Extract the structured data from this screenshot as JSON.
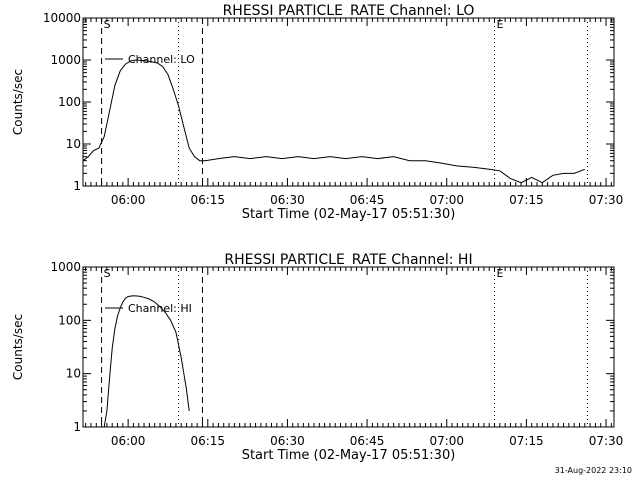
{
  "footer_timestamp": "31-Aug-2022 23:10",
  "chart_data": [
    {
      "type": "line",
      "title": "RHESSI PARTICLE_RATE Channel: LO",
      "xlabel": "Start Time (02-May-17 05:51:30)",
      "ylabel": "Counts/sec",
      "y_scale": "log",
      "ylim": [
        1,
        10000
      ],
      "y_ticks": [
        1,
        10,
        100,
        1000,
        10000
      ],
      "y_tick_labels": [
        "1",
        "10",
        "100",
        "1000",
        "10000"
      ],
      "x_ticks": [
        "06:00",
        "06:15",
        "06:30",
        "06:45",
        "07:00",
        "07:15",
        "07:30"
      ],
      "xlim": [
        "05:51:30",
        "07:31:30"
      ],
      "legend": "top-left",
      "series": [
        {
          "name": "Channel: LO",
          "points": [
            [
              "05:51:30",
              4
            ],
            [
              "05:52:30",
              5
            ],
            [
              "05:53:30",
              7
            ],
            [
              "05:54:30",
              8
            ],
            [
              "05:55:30",
              15
            ],
            [
              "05:56:30",
              60
            ],
            [
              "05:57:30",
              250
            ],
            [
              "05:58:30",
              550
            ],
            [
              "05:59:30",
              800
            ],
            [
              "06:00:30",
              950
            ],
            [
              "06:01:30",
              1000
            ],
            [
              "06:02:30",
              980
            ],
            [
              "06:03:30",
              950
            ],
            [
              "06:04:30",
              900
            ],
            [
              "06:05:30",
              850
            ],
            [
              "06:06:30",
              700
            ],
            [
              "06:07:30",
              450
            ],
            [
              "06:08:30",
              200
            ],
            [
              "06:09:30",
              80
            ],
            [
              "06:10:30",
              25
            ],
            [
              "06:11:30",
              8
            ],
            [
              "06:12:30",
              5
            ],
            [
              "06:13:30",
              4
            ],
            [
              "06:14:30",
              4
            ],
            [
              "06:17:00",
              4.5
            ],
            [
              "06:20:00",
              5
            ],
            [
              "06:23:00",
              4.5
            ],
            [
              "06:26:00",
              5
            ],
            [
              "06:29:00",
              4.5
            ],
            [
              "06:32:00",
              5
            ],
            [
              "06:35:00",
              4.5
            ],
            [
              "06:38:00",
              5
            ],
            [
              "06:41:00",
              4.5
            ],
            [
              "06:44:00",
              5
            ],
            [
              "06:47:00",
              4.5
            ],
            [
              "06:50:00",
              5
            ],
            [
              "06:53:00",
              4
            ],
            [
              "06:56:00",
              4
            ],
            [
              "06:59:00",
              3.5
            ],
            [
              "07:02:00",
              3
            ],
            [
              "07:05:00",
              2.8
            ],
            [
              "07:08:00",
              2.5
            ],
            [
              "07:10:00",
              2.3
            ],
            [
              "07:12:00",
              1.5
            ],
            [
              "07:14:00",
              1.2
            ],
            [
              "07:16:00",
              1.6
            ],
            [
              "07:18:00",
              1.2
            ],
            [
              "07:20:00",
              1.8
            ],
            [
              "07:22:00",
              2
            ],
            [
              "07:24:00",
              2
            ],
            [
              "07:26:00",
              2.5
            ]
          ]
        }
      ],
      "markers": [
        {
          "label": "S",
          "time": "05:55:00",
          "style": "dashed"
        },
        {
          "label": "",
          "time": "06:09:30",
          "style": "dotted"
        },
        {
          "label": "",
          "time": "06:14:00",
          "style": "dashed"
        },
        {
          "label": "E",
          "time": "07:09:00",
          "style": "dotted"
        },
        {
          "label": "",
          "time": "07:26:30",
          "style": "dotted"
        }
      ]
    },
    {
      "type": "line",
      "title": "RHESSI PARTICLE_RATE Channel: HI",
      "xlabel": "Start Time (02-May-17 05:51:30)",
      "ylabel": "Counts/sec",
      "y_scale": "log",
      "ylim": [
        1,
        1000
      ],
      "y_ticks": [
        1,
        10,
        100,
        1000
      ],
      "y_tick_labels": [
        "1",
        "10",
        "100",
        "1000"
      ],
      "x_ticks": [
        "06:00",
        "06:15",
        "06:30",
        "06:45",
        "07:00",
        "07:15",
        "07:30"
      ],
      "xlim": [
        "05:51:30",
        "07:31:30"
      ],
      "legend": "top-left",
      "series": [
        {
          "name": "Channel: HI",
          "points": [
            [
              "05:55:30",
              1
            ],
            [
              "05:56:00",
              2
            ],
            [
              "05:56:30",
              8
            ],
            [
              "05:57:00",
              30
            ],
            [
              "05:57:30",
              70
            ],
            [
              "05:58:00",
              120
            ],
            [
              "05:58:30",
              170
            ],
            [
              "05:59:00",
              220
            ],
            [
              "05:59:30",
              260
            ],
            [
              "06:00:00",
              280
            ],
            [
              "06:01:00",
              290
            ],
            [
              "06:02:00",
              285
            ],
            [
              "06:03:00",
              270
            ],
            [
              "06:04:00",
              250
            ],
            [
              "06:05:00",
              220
            ],
            [
              "06:06:00",
              180
            ],
            [
              "06:07:00",
              140
            ],
            [
              "06:08:00",
              100
            ],
            [
              "06:09:00",
              60
            ],
            [
              "06:10:00",
              20
            ],
            [
              "06:11:00",
              5
            ],
            [
              "06:11:30",
              2
            ]
          ]
        }
      ],
      "markers": [
        {
          "label": "S",
          "time": "05:55:00",
          "style": "dashed"
        },
        {
          "label": "",
          "time": "06:09:30",
          "style": "dotted"
        },
        {
          "label": "",
          "time": "06:14:00",
          "style": "dashed"
        },
        {
          "label": "E",
          "time": "07:09:00",
          "style": "dotted"
        },
        {
          "label": "",
          "time": "07:26:30",
          "style": "dotted"
        }
      ]
    }
  ]
}
